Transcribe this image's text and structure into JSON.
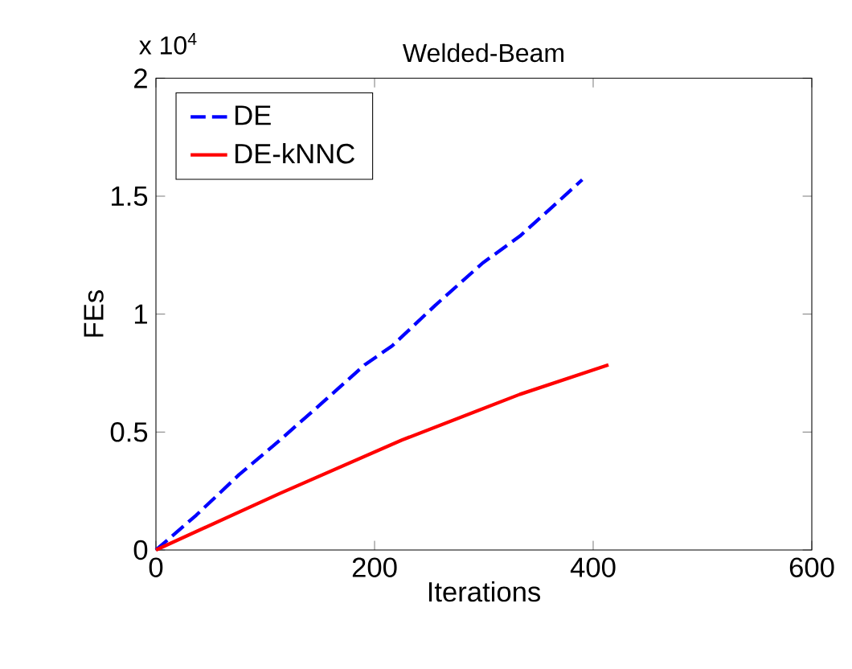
{
  "chart_data": {
    "type": "line",
    "title": "Welded-Beam",
    "xlabel": "Iterations",
    "ylabel": "FEs",
    "annotations": [
      "x 10$^{4}$"
    ],
    "xlim": [
      0,
      600
    ],
    "xticks": [
      0,
      200,
      400,
      600
    ],
    "ylim": [
      0,
      2
    ],
    "yticks": [
      0,
      0.5,
      1,
      1.5,
      2
    ],
    "legend": "top left",
    "grid": false,
    "series": [
      {
        "name": "DE",
        "color": "#0000ff",
        "line_style": "dashed",
        "x": [
          0,
          37,
          76,
          108,
          147,
          191,
          216,
          255,
          299,
          333,
          363,
          390
        ],
        "values": [
          0,
          0.148,
          0.319,
          0.444,
          0.603,
          0.785,
          0.865,
          1.035,
          1.217,
          1.331,
          1.456,
          1.57
        ]
      },
      {
        "name": "DE-kNNC",
        "color": "#ff0000",
        "line_style": "solid",
        "x": [
          0,
          113,
          225,
          333,
          414
        ],
        "values": [
          0,
          0.239,
          0.466,
          0.66,
          0.785
        ]
      }
    ]
  }
}
